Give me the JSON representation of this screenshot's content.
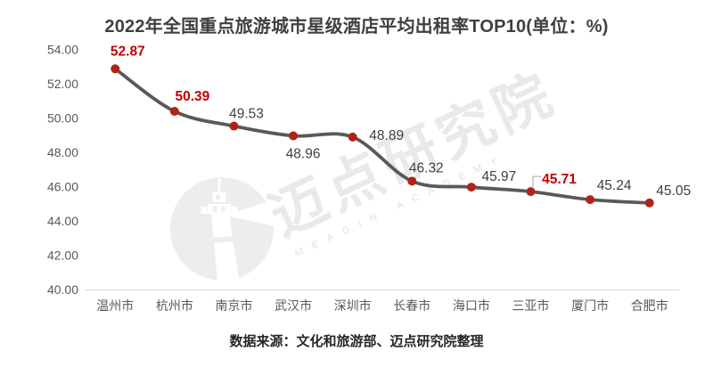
{
  "title": "2022年全国重点旅游城市星级酒店平均出租率TOP10(单位：%)",
  "source_note": "数据来源：文化和旅游部、迈点研究院整理",
  "watermark": {
    "logo": "lighthouse-logo",
    "text": "迈点研究院",
    "subtext": "MEADIN ACADEMY"
  },
  "chart_data": {
    "type": "line",
    "title": "2022年全国重点旅游城市星级酒店平均出租率TOP10(单位：%)",
    "categories": [
      "温州市",
      "杭州市",
      "南京市",
      "武汉市",
      "深圳市",
      "长春市",
      "海口市",
      "三亚市",
      "厦门市",
      "合肥市"
    ],
    "values": [
      52.87,
      50.39,
      49.53,
      48.96,
      48.89,
      46.32,
      45.97,
      45.71,
      45.24,
      45.05
    ],
    "value_labels": [
      "52.87",
      "50.39",
      "49.53",
      "48.96",
      "48.89",
      "46.32",
      "45.97",
      "45.71",
      "45.24",
      "45.05"
    ],
    "highlighted_indices": [
      0,
      1,
      7
    ],
    "leader_line_index": 7,
    "xlabel": "",
    "ylabel": "",
    "ylim": [
      40,
      54
    ],
    "ytick_step": 2,
    "ytick_labels": [
      "54.00",
      "52.00",
      "50.00",
      "48.00",
      "46.00",
      "44.00",
      "42.00",
      "40.00"
    ],
    "grid": false,
    "legend": "none",
    "colors": {
      "line": "#595959",
      "marker": "#B02418",
      "highlight_label": "#C00000",
      "label": "#404040",
      "axis_text": "#595959",
      "axis_line": "#D9D9D9",
      "leader": "#A6A6A6",
      "watermark_fill": "#EDEDED",
      "watermark_text": "#E9E9E9",
      "watermark_subtext": "#E0E0E0"
    }
  }
}
